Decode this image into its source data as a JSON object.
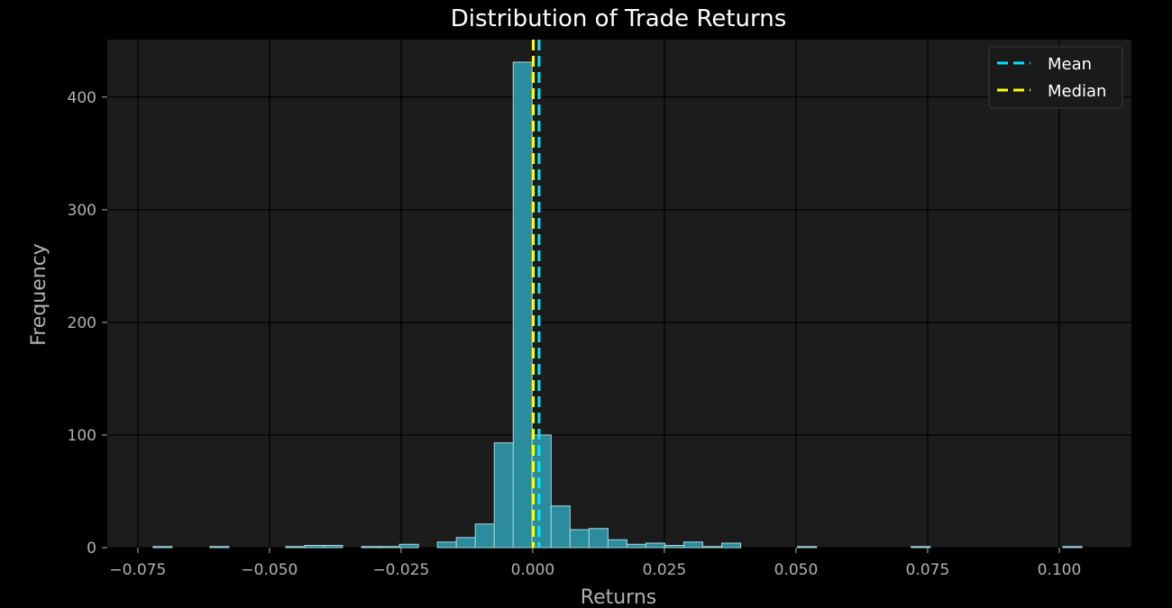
{
  "chart_data": {
    "type": "bar",
    "title": "Distribution of Trade Returns",
    "xlabel": "Returns",
    "ylabel": "Frequency",
    "xlim": [
      -0.0808,
      0.1137
    ],
    "ylim": [
      0,
      451
    ],
    "x_ticks": [
      -0.075,
      -0.05,
      -0.025,
      0.0,
      0.025,
      0.05,
      0.075,
      0.1
    ],
    "x_tick_labels": [
      "−0.075",
      "−0.050",
      "−0.025",
      "0.000",
      "0.025",
      "0.050",
      "0.075",
      "0.100"
    ],
    "y_ticks": [
      0,
      100,
      200,
      300,
      400
    ],
    "y_tick_labels": [
      "0",
      "100",
      "200",
      "300",
      "400"
    ],
    "grid": true,
    "bin_edges": [
      -0.07211,
      -0.06851,
      -0.06491,
      -0.06131,
      -0.05771,
      -0.05411,
      -0.05051,
      -0.04691,
      -0.04331,
      -0.03971,
      -0.03611,
      -0.03251,
      -0.02891,
      -0.02531,
      -0.02171,
      -0.01811,
      -0.01451,
      -0.01091,
      -0.00731,
      -0.00371,
      -0.00011,
      0.00349,
      0.00709,
      0.01069,
      0.01429,
      0.01789,
      0.02149,
      0.02509,
      0.02869,
      0.03229,
      0.03589,
      0.03949,
      0.04309,
      0.04669,
      0.05029,
      0.05389,
      0.05749,
      0.06109,
      0.06469,
      0.06829,
      0.07189,
      0.07549,
      0.07909,
      0.08269,
      0.08629,
      0.08989,
      0.09349,
      0.09709,
      0.10069,
      0.10429
    ],
    "counts": [
      1,
      0,
      0,
      1,
      0,
      0,
      0,
      1,
      2,
      2,
      0,
      1,
      1,
      3,
      0,
      5,
      9,
      21,
      93,
      431,
      100,
      37,
      16,
      17,
      7,
      3,
      4,
      2,
      5,
      1,
      4,
      0,
      0,
      0,
      1,
      0,
      0,
      0,
      0,
      0,
      1,
      0,
      0,
      0,
      0,
      0,
      0,
      0,
      1
    ],
    "series": [
      {
        "name": "Mean",
        "type": "vline",
        "x": 0.0012,
        "color": "#00e5ff",
        "style": "dashed"
      },
      {
        "name": "Median",
        "type": "vline",
        "x": 0.0001,
        "color": "#ffff00",
        "style": "dashed"
      }
    ],
    "legend_position": "top-right",
    "colors": {
      "background": "#000000",
      "plot_background": "#1c1c1c",
      "grid": "#000000",
      "bar_fill": "#2a8c9c",
      "bar_edge": "#a8d8df",
      "text": "#b0b0b0",
      "title": "#ffffff",
      "legend_background": "#1a1a1a",
      "legend_border": "#3a3a3a"
    }
  }
}
